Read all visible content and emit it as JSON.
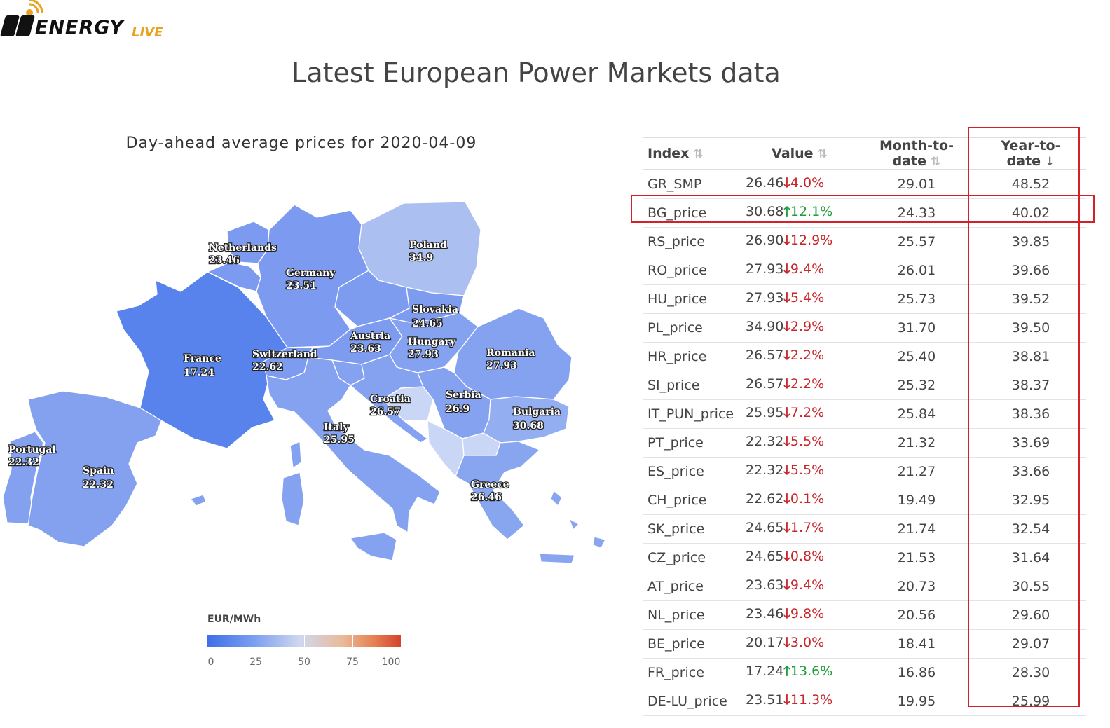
{
  "logo": {
    "brand": "ENERGY",
    "suffix": "LIVE"
  },
  "page_title": "Latest European Power Markets data",
  "map": {
    "title": "Day-ahead average prices for 2020-04-09",
    "countries": [
      {
        "name": "Netherlands",
        "value": "23.46"
      },
      {
        "name": "Germany",
        "value": "23.51"
      },
      {
        "name": "Poland",
        "value": "34.9"
      },
      {
        "name": "Slovakia",
        "value": "24.65"
      },
      {
        "name": "Austria",
        "value": "23.63"
      },
      {
        "name": "Hungary",
        "value": "27.93"
      },
      {
        "name": "Romania",
        "value": "27.93"
      },
      {
        "name": "France",
        "value": "17.24"
      },
      {
        "name": "Switzerland",
        "value": "22.62"
      },
      {
        "name": "Croatia",
        "value": "26.57"
      },
      {
        "name": "Serbia",
        "value": "26.9"
      },
      {
        "name": "Bulgaria",
        "value": "30.68"
      },
      {
        "name": "Italy",
        "value": "25.95"
      },
      {
        "name": "Portugal",
        "value": "22.32"
      },
      {
        "name": "Spain",
        "value": "22.32"
      },
      {
        "name": "Greece",
        "value": "26.46"
      }
    ],
    "legend": {
      "unit": "EUR/MWh",
      "ticks": [
        "0",
        "25",
        "50",
        "75",
        "100"
      ],
      "colors": [
        "#3f6fe8",
        "#cfd8ee",
        "#d3442d"
      ]
    }
  },
  "table": {
    "headers": [
      "Index",
      "Value",
      "Month-to-date",
      "Year-to-date"
    ],
    "rows": [
      {
        "index": "GR_SMP",
        "value": "26.46",
        "change": "4.0%",
        "dir": "down",
        "mtd": "29.01",
        "ytd": "48.52"
      },
      {
        "index": "BG_price",
        "value": "30.68",
        "change": "12.1%",
        "dir": "up",
        "mtd": "24.33",
        "ytd": "40.02"
      },
      {
        "index": "RS_price",
        "value": "26.90",
        "change": "12.9%",
        "dir": "down",
        "mtd": "25.57",
        "ytd": "39.85"
      },
      {
        "index": "RO_price",
        "value": "27.93",
        "change": "9.4%",
        "dir": "down",
        "mtd": "26.01",
        "ytd": "39.66"
      },
      {
        "index": "HU_price",
        "value": "27.93",
        "change": "5.4%",
        "dir": "down",
        "mtd": "25.73",
        "ytd": "39.52"
      },
      {
        "index": "PL_price",
        "value": "34.90",
        "change": "2.9%",
        "dir": "down",
        "mtd": "31.70",
        "ytd": "39.50"
      },
      {
        "index": "HR_price",
        "value": "26.57",
        "change": "2.2%",
        "dir": "down",
        "mtd": "25.40",
        "ytd": "38.81"
      },
      {
        "index": "SI_price",
        "value": "26.57",
        "change": "2.2%",
        "dir": "down",
        "mtd": "25.32",
        "ytd": "38.37"
      },
      {
        "index": "IT_PUN_price",
        "value": "25.95",
        "change": "7.2%",
        "dir": "down",
        "mtd": "25.84",
        "ytd": "38.36"
      },
      {
        "index": "PT_price",
        "value": "22.32",
        "change": "5.5%",
        "dir": "down",
        "mtd": "21.32",
        "ytd": "33.69"
      },
      {
        "index": "ES_price",
        "value": "22.32",
        "change": "5.5%",
        "dir": "down",
        "mtd": "21.27",
        "ytd": "33.66"
      },
      {
        "index": "CH_price",
        "value": "22.62",
        "change": "0.1%",
        "dir": "down",
        "mtd": "19.49",
        "ytd": "32.95"
      },
      {
        "index": "SK_price",
        "value": "24.65",
        "change": "1.7%",
        "dir": "down",
        "mtd": "21.74",
        "ytd": "32.54"
      },
      {
        "index": "CZ_price",
        "value": "24.65",
        "change": "0.8%",
        "dir": "down",
        "mtd": "21.53",
        "ytd": "31.64"
      },
      {
        "index": "AT_price",
        "value": "23.63",
        "change": "9.4%",
        "dir": "down",
        "mtd": "20.73",
        "ytd": "30.55"
      },
      {
        "index": "NL_price",
        "value": "23.46",
        "change": "9.8%",
        "dir": "down",
        "mtd": "20.56",
        "ytd": "29.60"
      },
      {
        "index": "BE_price",
        "value": "20.17",
        "change": "3.0%",
        "dir": "down",
        "mtd": "18.41",
        "ytd": "29.07"
      },
      {
        "index": "FR_price",
        "value": "17.24",
        "change": "13.6%",
        "dir": "up",
        "mtd": "16.86",
        "ytd": "28.30"
      },
      {
        "index": "DE-LU_price",
        "value": "23.51",
        "change": "11.3%",
        "dir": "down",
        "mtd": "19.95",
        "ytd": "25.99"
      }
    ]
  }
}
